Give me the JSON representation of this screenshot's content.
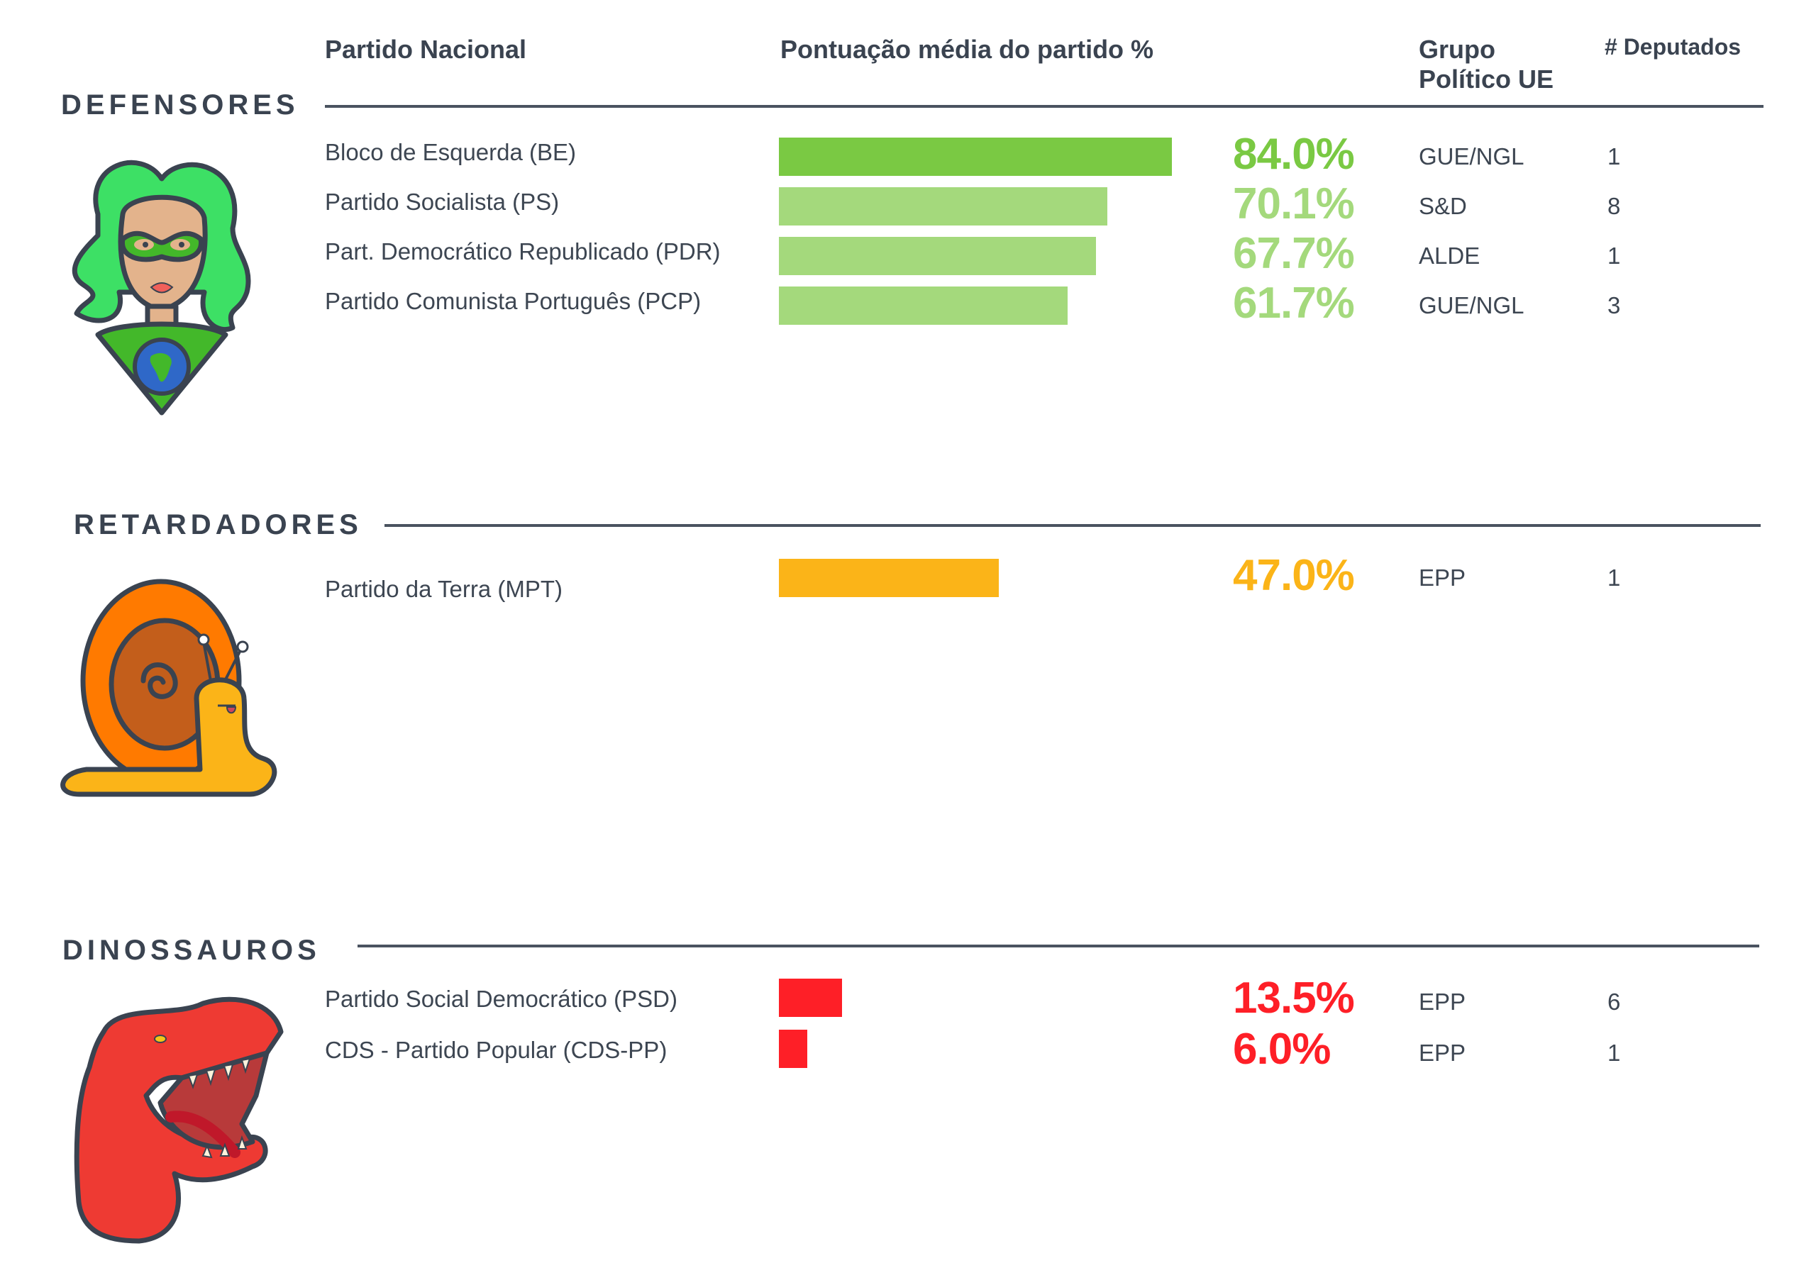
{
  "headers": {
    "party": "Partido Nacional",
    "score": "Pontuação média do partido %",
    "group_line1": "Grupo",
    "group_line2": "Político UE",
    "deputies": "# Deputados"
  },
  "colors": {
    "text": "#3a4350",
    "green_dark": "#7ac943",
    "green_light": "#a4d97c",
    "orange": "#fbb418",
    "red": "#fe1f27"
  },
  "chart_data": {
    "type": "bar",
    "orientation": "horizontal",
    "title": "Pontuação média do partido %",
    "xlabel": "",
    "ylabel": "Partido Nacional",
    "xlim": [
      0,
      100
    ],
    "grid": false,
    "groups": [
      {
        "name": "DEFENSORES",
        "mascot": "superhero-woman-icon",
        "rows": [
          {
            "party": "Bloco de Esquerda (BE)",
            "value": 84.0,
            "label": "84.0%",
            "eu_group": "GUE/NGL",
            "deputies": "1",
            "color": "#7ac943"
          },
          {
            "party": "Partido Socialista (PS)",
            "value": 70.1,
            "label": "70.1%",
            "eu_group": "S&D",
            "deputies": "8",
            "color": "#a4d97c"
          },
          {
            "party": "Part. Democrático Republicado (PDR)",
            "value": 67.7,
            "label": "67.7%",
            "eu_group": "ALDE",
            "deputies": "1",
            "color": "#a4d97c"
          },
          {
            "party": "Partido Comunista Português (PCP)",
            "value": 61.7,
            "label": "61.7%",
            "eu_group": "GUE/NGL",
            "deputies": "3",
            "color": "#a4d97c"
          }
        ]
      },
      {
        "name": "RETARDADORES",
        "mascot": "snail-icon",
        "rows": [
          {
            "party": "Partido da Terra (MPT)",
            "value": 47.0,
            "label": "47.0%",
            "eu_group": "EPP",
            "deputies": "1",
            "color": "#fbb418"
          }
        ]
      },
      {
        "name": "DINOSSAUROS",
        "mascot": "dinosaur-icon",
        "rows": [
          {
            "party": "Partido  Social  Democrático  (PSD)",
            "value": 13.5,
            "label": "13.5%",
            "eu_group": "EPP",
            "deputies": "6",
            "color": "#fe1f27"
          },
          {
            "party": "CDS - Partido Popular (CDS-PP)",
            "value": 6.0,
            "label": "6.0%",
            "eu_group": "EPP",
            "deputies": "1",
            "color": "#fe1f27"
          }
        ]
      }
    ]
  }
}
